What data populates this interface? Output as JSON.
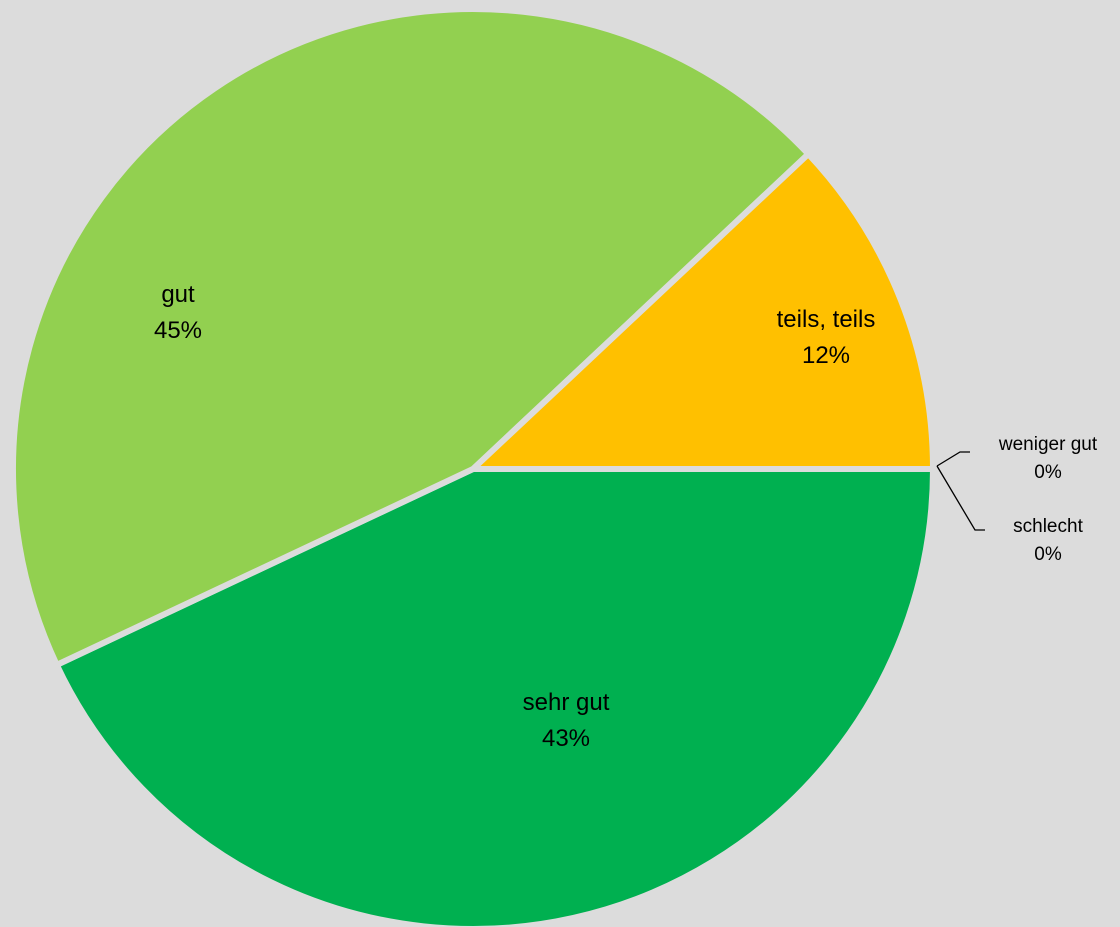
{
  "chart_data": {
    "type": "pie",
    "title": "",
    "slices": [
      {
        "label": "sehr gut",
        "value": 43,
        "value_label": "43%",
        "color": "#00b050"
      },
      {
        "label": "gut",
        "value": 45,
        "value_label": "45%",
        "color": "#92d050"
      },
      {
        "label": "teils, teils",
        "value": 12,
        "value_label": "12%",
        "color": "#ffc000"
      },
      {
        "label": "weniger gut",
        "value": 0,
        "value_label": "0%",
        "color": "#ff0000"
      },
      {
        "label": "schlecht",
        "value": 0,
        "value_label": "0%",
        "color": "#c00000"
      }
    ],
    "start": "3 o'clock, clockwise",
    "legend": "none",
    "slice_separator_color": "#dcdcdc",
    "background_color": "#dcdcdc"
  }
}
